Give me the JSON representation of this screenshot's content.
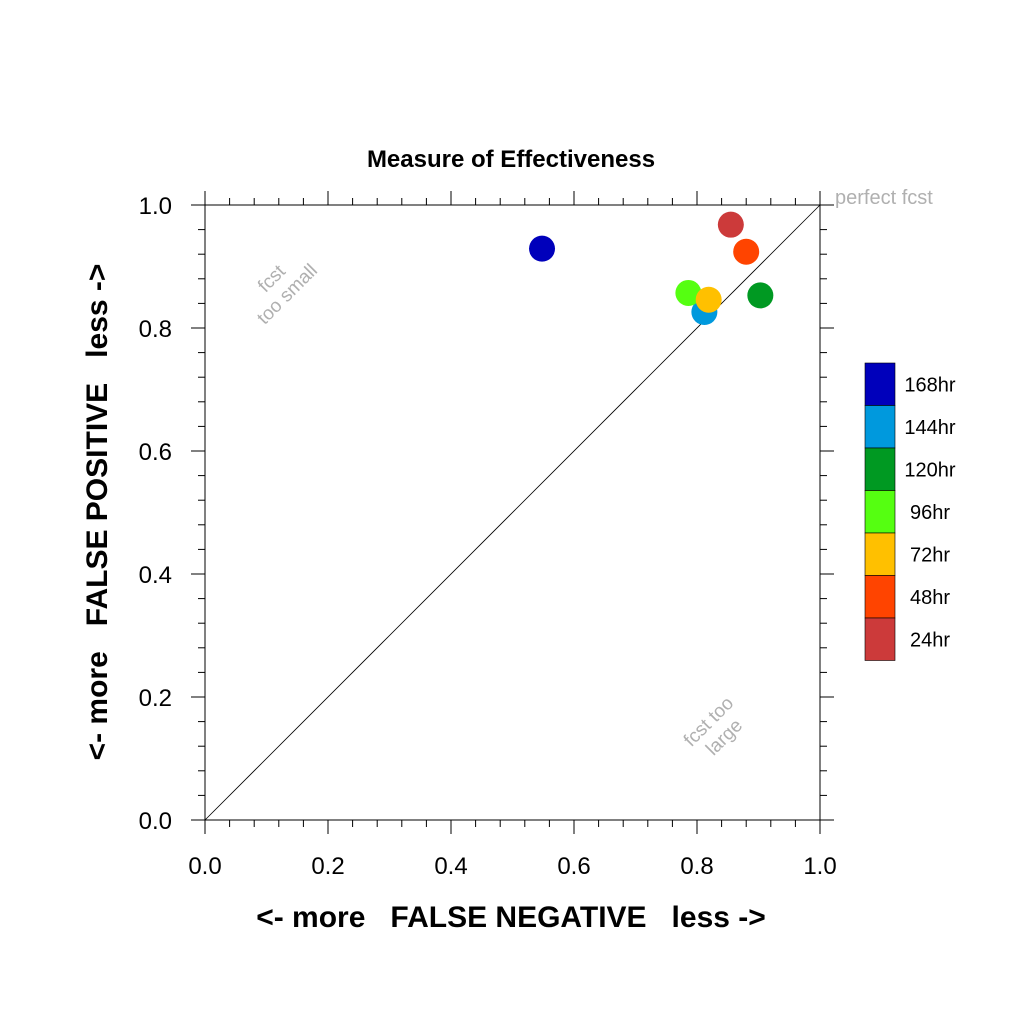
{
  "chart_data": {
    "type": "scatter",
    "title": "Measure of Effectiveness",
    "xlabel": "<- more   FALSE NEGATIVE   less ->",
    "ylabel": "<- more   FALSE POSITIVE   less ->",
    "xlim": [
      0,
      1
    ],
    "ylim": [
      0,
      1
    ],
    "xticks": [
      "0.0",
      "0.2",
      "0.4",
      "0.6",
      "0.8",
      "1.0"
    ],
    "yticks": [
      "0.0",
      "0.2",
      "0.4",
      "0.6",
      "0.8",
      "1.0"
    ],
    "grid": false,
    "diagonal_line": true,
    "annotations": {
      "perfect": "perfect fcst",
      "too_small": [
        "fcst",
        "too small"
      ],
      "too_large": [
        "fcst too",
        "large"
      ]
    },
    "legend_position": "right",
    "series": [
      {
        "name": "168hr",
        "color": "#0000bb",
        "x": 0.548,
        "y": 0.929
      },
      {
        "name": "144hr",
        "color": "#0099dd",
        "x": 0.812,
        "y": 0.826
      },
      {
        "name": "120hr",
        "color": "#009922",
        "x": 0.903,
        "y": 0.853
      },
      {
        "name": "96hr",
        "color": "#55ff11",
        "x": 0.786,
        "y": 0.857
      },
      {
        "name": "72hr",
        "color": "#ffc000",
        "x": 0.819,
        "y": 0.846
      },
      {
        "name": "48hr",
        "color": "#ff4400",
        "x": 0.88,
        "y": 0.924
      },
      {
        "name": "24hr",
        "color": "#cc3a3a",
        "x": 0.855,
        "y": 0.968
      }
    ],
    "plot_order": [
      "144hr",
      "96hr",
      "72hr",
      "120hr",
      "168hr",
      "48hr",
      "24hr"
    ]
  }
}
